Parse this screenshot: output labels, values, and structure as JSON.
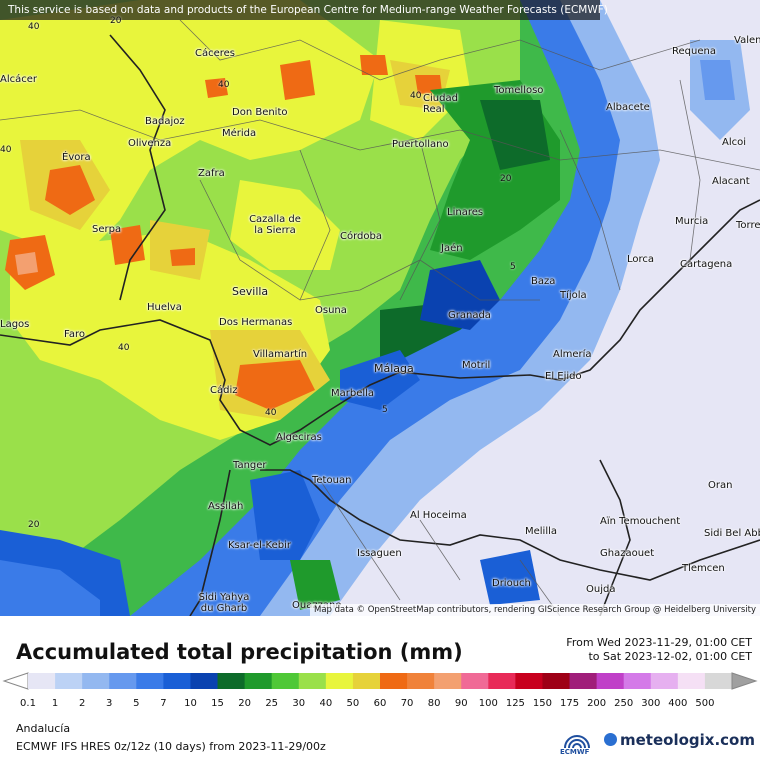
{
  "notice": "This service is based on data and products of the European Centre for Medium-range Weather Forecasts (ECMWF)",
  "attribution": "Map data © OpenStreetMap contributors, rendering GIScience Research Group @ Heidelberg University",
  "title": "Accumulated total precipitation (mm)",
  "period": {
    "from": "From Wed 2023-11-29, 01:00 CET",
    "to": "to Sat 2023-12-02, 01:00 CET"
  },
  "region": "Andalucía",
  "model": "ECMWF IFS HRES 0z/12z (10 days) from  2023-11-29/00z",
  "ecmwf_label": "ECMWF",
  "brand": "meteologix.com",
  "legend": {
    "ticks": [
      "0.1",
      "1",
      "2",
      "3",
      "5",
      "7",
      "10",
      "15",
      "20",
      "25",
      "30",
      "40",
      "50",
      "60",
      "70",
      "80",
      "90",
      "100",
      "125",
      "150",
      "175",
      "200",
      "250",
      "300",
      "400",
      "500"
    ],
    "colors": [
      "#e6e6f5",
      "#bcd2f5",
      "#93b8f0",
      "#6699ee",
      "#3a7be8",
      "#1a5fd6",
      "#0a42b0",
      "#0d6b2a",
      "#1f9a2c",
      "#4fc837",
      "#9ae04a",
      "#e8f53c",
      "#e6d23a",
      "#ef6a14",
      "#f0823a",
      "#f3a070",
      "#f06a96",
      "#e82a58",
      "#c8001e",
      "#9e0016",
      "#a01e7a",
      "#c040c8",
      "#d47ae8",
      "#e6b0f0",
      "#f5e0f5",
      "#d8d8d8"
    ]
  },
  "cities": [
    {
      "name": "Cáceres"
    },
    {
      "name": "Don Benito"
    },
    {
      "name": "Mérida"
    },
    {
      "name": "Badajoz"
    },
    {
      "name": "Olivenza"
    },
    {
      "name": "Évora"
    },
    {
      "name": "Zafra"
    },
    {
      "name": "Serpa"
    },
    {
      "name": "Cazalla de la Sierra"
    },
    {
      "name": "Córdoba"
    },
    {
      "name": "Sevilla"
    },
    {
      "name": "Huelva"
    },
    {
      "name": "Dos Hermanas"
    },
    {
      "name": "Osuna"
    },
    {
      "name": "Faro"
    },
    {
      "name": "Villamartín"
    },
    {
      "name": "Cádiz"
    },
    {
      "name": "Marbella"
    },
    {
      "name": "Málaga"
    },
    {
      "name": "Algeciras"
    },
    {
      "name": "Tanger"
    },
    {
      "name": "Tetouan"
    },
    {
      "name": "Assilah"
    },
    {
      "name": "Ksar-el-Kebir"
    },
    {
      "name": "Sidi Yahya du Gharb"
    },
    {
      "name": "Ouazzane"
    },
    {
      "name": "Al Hoceima"
    },
    {
      "name": "Issaguen"
    },
    {
      "name": "Melilla"
    },
    {
      "name": "Driouch"
    },
    {
      "name": "Oujda"
    },
    {
      "name": "Aïn Temouchent"
    },
    {
      "name": "Ghazaouet"
    },
    {
      "name": "Tlemcen"
    },
    {
      "name": "Sidi Bel Abbès"
    },
    {
      "name": "Oran"
    },
    {
      "name": "Almería"
    },
    {
      "name": "El Ejido"
    },
    {
      "name": "Motril"
    },
    {
      "name": "Granada"
    },
    {
      "name": "Tíjola"
    },
    {
      "name": "Baza"
    },
    {
      "name": "Jaén"
    },
    {
      "name": "Linares"
    },
    {
      "name": "Puertollano"
    },
    {
      "name": "Ciudad Real"
    },
    {
      "name": "Tomelloso"
    },
    {
      "name": "Albacete"
    },
    {
      "name": "Requena"
    },
    {
      "name": "Valencia"
    },
    {
      "name": "Alcoi"
    },
    {
      "name": "Alacant"
    },
    {
      "name": "Murcia"
    },
    {
      "name": "Lorca"
    },
    {
      "name": "Cartagena"
    },
    {
      "name": "Torrevieja"
    },
    {
      "name": "Lagos"
    },
    {
      "name": "Alcácer"
    }
  ],
  "contours": [
    "40",
    "40",
    "40",
    "40",
    "40",
    "20",
    "20",
    "20",
    "5",
    "5",
    "40"
  ]
}
